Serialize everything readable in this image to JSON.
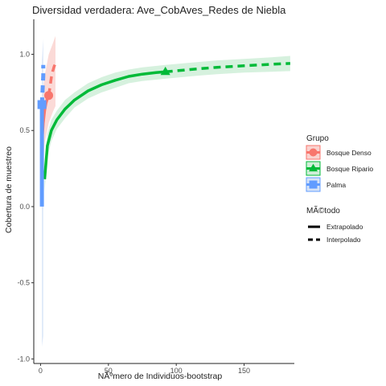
{
  "chart_data": {
    "type": "line",
    "title": "Diversidad verdadera: Ave_CobAves_Redes de Niebla",
    "xlabel": "NÃºmero de Individuos-bootstrap",
    "ylabel": "Cobertura de muestreo",
    "xlim": [
      -5,
      187
    ],
    "ylim": [
      -1.03,
      1.23
    ],
    "x_ticks": [
      0,
      50,
      100,
      150
    ],
    "x_tick_labels": [
      "0",
      "50",
      "100",
      "150"
    ],
    "y_ticks": [
      -1.0,
      -0.5,
      0.0,
      0.5,
      1.0
    ],
    "y_tick_labels": [
      "-1.0",
      "-0.5",
      "0.0",
      "0.5",
      "1.0"
    ],
    "grid": false,
    "legend_position": "right",
    "legends": [
      {
        "title": "Grupo",
        "entries": [
          "Bosque Denso",
          "Bosque Ripario",
          "Palma"
        ]
      },
      {
        "title": "MÃ©todo",
        "entries": [
          "Extrapolado",
          "Interpolado"
        ]
      }
    ],
    "series": [
      {
        "name": "Bosque Denso",
        "color": "#F8766D",
        "band_color": "#FAD3D0",
        "marker": "circle",
        "observed": {
          "x": 6,
          "y": 0.73
        },
        "interpolated": [
          [
            1,
            0.42
          ],
          [
            2,
            0.55
          ],
          [
            3,
            0.63
          ],
          [
            4,
            0.68
          ],
          [
            5,
            0.71
          ],
          [
            6,
            0.73
          ]
        ],
        "extrapolated": [
          [
            6,
            0.73
          ],
          [
            7,
            0.79
          ],
          [
            8,
            0.85
          ],
          [
            9,
            0.89
          ],
          [
            10,
            0.92
          ],
          [
            11,
            0.94
          ]
        ],
        "band_lower": [
          [
            1,
            0.15
          ],
          [
            3,
            0.42
          ],
          [
            6,
            0.55
          ],
          [
            9,
            0.62
          ],
          [
            11,
            0.66
          ]
        ],
        "band_upper": [
          [
            1,
            0.7
          ],
          [
            3,
            0.86
          ],
          [
            6,
            1.0
          ],
          [
            9,
            1.07
          ],
          [
            11,
            1.12
          ]
        ]
      },
      {
        "name": "Bosque Ripario",
        "color": "#00BA38",
        "band_color": "#CFEFD8",
        "marker": "triangle",
        "observed": {
          "x": 92,
          "y": 0.885
        },
        "interpolated": [
          [
            3,
            0.18
          ],
          [
            5,
            0.4
          ],
          [
            8,
            0.5
          ],
          [
            12,
            0.57
          ],
          [
            18,
            0.64
          ],
          [
            25,
            0.7
          ],
          [
            35,
            0.76
          ],
          [
            45,
            0.8
          ],
          [
            55,
            0.83
          ],
          [
            65,
            0.855
          ],
          [
            75,
            0.87
          ],
          [
            85,
            0.88
          ],
          [
            92,
            0.885
          ]
        ],
        "extrapolated": [
          [
            92,
            0.885
          ],
          [
            110,
            0.9
          ],
          [
            130,
            0.915
          ],
          [
            150,
            0.925
          ],
          [
            170,
            0.935
          ],
          [
            184,
            0.94
          ]
        ],
        "band_lower": [
          [
            3,
            0.1
          ],
          [
            5,
            0.32
          ],
          [
            8,
            0.43
          ],
          [
            12,
            0.51
          ],
          [
            18,
            0.58
          ],
          [
            25,
            0.65
          ],
          [
            35,
            0.71
          ],
          [
            45,
            0.75
          ],
          [
            55,
            0.78
          ],
          [
            65,
            0.81
          ],
          [
            75,
            0.825
          ],
          [
            92,
            0.84
          ],
          [
            110,
            0.855
          ],
          [
            130,
            0.87
          ],
          [
            150,
            0.88
          ],
          [
            170,
            0.885
          ],
          [
            184,
            0.89
          ]
        ],
        "band_upper": [
          [
            3,
            0.26
          ],
          [
            5,
            0.48
          ],
          [
            8,
            0.57
          ],
          [
            12,
            0.63
          ],
          [
            18,
            0.7
          ],
          [
            25,
            0.75
          ],
          [
            35,
            0.81
          ],
          [
            45,
            0.85
          ],
          [
            55,
            0.88
          ],
          [
            65,
            0.9
          ],
          [
            75,
            0.915
          ],
          [
            92,
            0.93
          ],
          [
            110,
            0.945
          ],
          [
            130,
            0.96
          ],
          [
            150,
            0.97
          ],
          [
            170,
            0.98
          ],
          [
            184,
            0.99
          ]
        ]
      },
      {
        "name": "Palma",
        "color": "#619CFF",
        "band_color": "#D6E3F7",
        "marker": "square",
        "observed": {
          "x": 1,
          "y": 0.67
        },
        "interpolated": [
          [
            1,
            0.0
          ],
          [
            1,
            0.67
          ]
        ],
        "extrapolated": [
          [
            1,
            0.67
          ],
          [
            2,
            0.86
          ],
          [
            2,
            0.93
          ]
        ],
        "band_lower": [
          [
            1,
            -0.92
          ],
          [
            2,
            -0.85
          ]
        ],
        "band_upper": [
          [
            1,
            0.96
          ],
          [
            2,
            1.1
          ]
        ]
      }
    ]
  }
}
